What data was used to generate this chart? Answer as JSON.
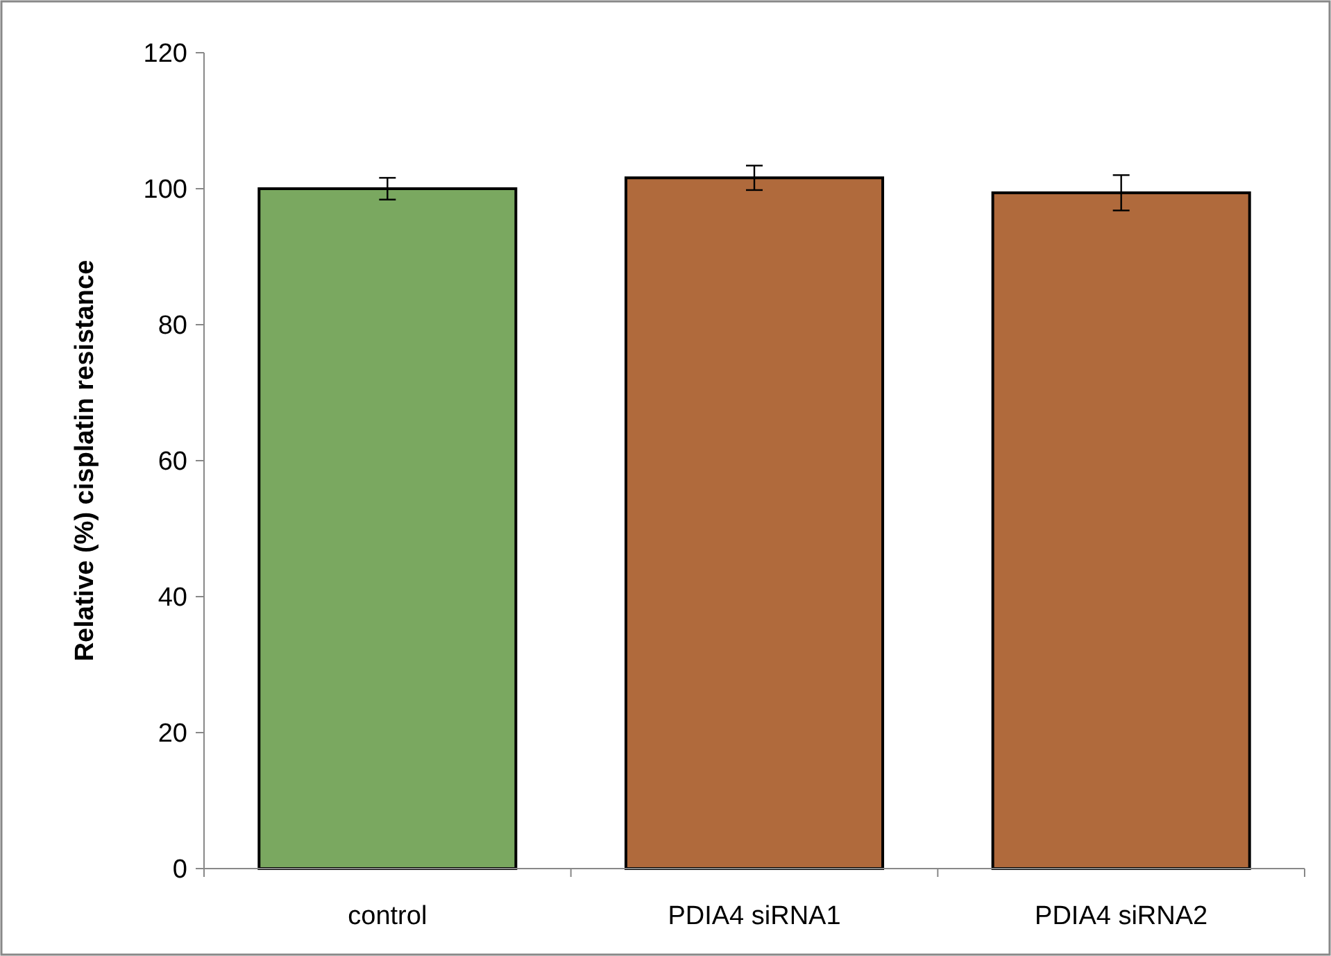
{
  "chart_data": {
    "type": "bar",
    "ylabel": "Relative (%) cisplatin resistance",
    "categories": [
      "control",
      "PDIA4 siRNA1",
      "PDIA4 siRNA2"
    ],
    "values": [
      100,
      101.6,
      99.4
    ],
    "errors": [
      1.6,
      1.8,
      2.6
    ],
    "colors": [
      "#7aa860",
      "#b06a3c",
      "#b06a3c"
    ],
    "ylim": [
      0,
      120
    ],
    "yticks": [
      0,
      20,
      40,
      60,
      80,
      100,
      120
    ],
    "grid": false
  }
}
